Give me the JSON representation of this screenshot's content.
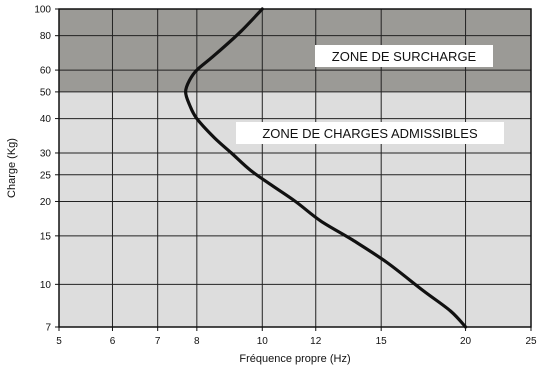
{
  "chart_data": {
    "type": "line",
    "xlabel": "Fréquence propre (Hz)",
    "ylabel": "Charge (Kg)",
    "x_scale": "log",
    "y_scale": "log",
    "xlim": [
      5,
      25
    ],
    "ylim": [
      7,
      100
    ],
    "x_ticks": [
      5,
      6,
      7,
      8,
      10,
      12,
      15,
      20,
      25
    ],
    "y_ticks": [
      7,
      10,
      15,
      20,
      25,
      30,
      40,
      50,
      60,
      80,
      100
    ],
    "grid": true,
    "zones": [
      {
        "label": "ZONE DE SURCHARGE",
        "y_range": [
          50,
          100
        ],
        "color": "#9b9a96"
      },
      {
        "label": "ZONE DE CHARGES ADMISSIBLES",
        "y_range": [
          7,
          50
        ],
        "color": "#dddddd"
      }
    ],
    "series": [
      {
        "color": "#111111",
        "points": [
          {
            "x": 20.0,
            "y": 7
          },
          {
            "x": 19.0,
            "y": 8
          },
          {
            "x": 17.3,
            "y": 9.5
          },
          {
            "x": 15.3,
            "y": 12
          },
          {
            "x": 13.6,
            "y": 14.5
          },
          {
            "x": 12.2,
            "y": 17
          },
          {
            "x": 11.2,
            "y": 20
          },
          {
            "x": 10.3,
            "y": 23
          },
          {
            "x": 9.6,
            "y": 26
          },
          {
            "x": 9.0,
            "y": 30
          },
          {
            "x": 8.5,
            "y": 34
          },
          {
            "x": 8.0,
            "y": 40
          },
          {
            "x": 7.8,
            "y": 45
          },
          {
            "x": 7.7,
            "y": 50
          },
          {
            "x": 7.8,
            "y": 55
          },
          {
            "x": 8.0,
            "y": 60
          },
          {
            "x": 8.5,
            "y": 68
          },
          {
            "x": 9.3,
            "y": 83
          },
          {
            "x": 10.0,
            "y": 100
          }
        ]
      }
    ]
  }
}
